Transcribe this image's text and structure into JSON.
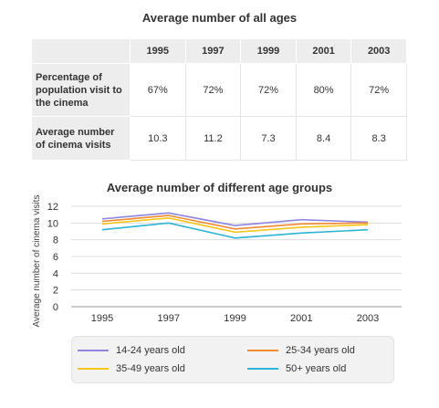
{
  "table": {
    "title": "Average number of all ages",
    "columns": [
      "1995",
      "1997",
      "1999",
      "2001",
      "2003"
    ],
    "rows": [
      {
        "label": "Percentage of population visit to the cinema",
        "values": [
          "67%",
          "72%",
          "72%",
          "80%",
          "72%"
        ]
      },
      {
        "label": "Average number of cinema visits",
        "values": [
          "10.3",
          "11.2",
          "7.3",
          "8.4",
          "8.3"
        ]
      }
    ]
  },
  "chart_data": {
    "type": "line",
    "title": "Average number of different age groups",
    "xlabel": "",
    "ylabel": "Average number of cinema visits",
    "categories": [
      "1995",
      "1997",
      "1999",
      "2001",
      "2003"
    ],
    "yticks": [
      0,
      2,
      4,
      6,
      8,
      10,
      12
    ],
    "ylim": [
      0,
      12
    ],
    "grid": "horizontal",
    "legend_position": "bottom",
    "series": [
      {
        "name": "14-24 years old",
        "color": "#8f86e0",
        "values": [
          10.5,
          11.2,
          9.7,
          10.4,
          10.1
        ]
      },
      {
        "name": "25-34 years old",
        "color": "#f28a30",
        "values": [
          10.2,
          10.9,
          9.3,
          9.9,
          10.0
        ]
      },
      {
        "name": "35-49 years old",
        "color": "#f5c518",
        "values": [
          9.9,
          10.6,
          8.9,
          9.5,
          9.8
        ]
      },
      {
        "name": "50+ years old",
        "color": "#2cb5d6",
        "values": [
          9.2,
          10.0,
          8.2,
          8.8,
          9.2
        ]
      }
    ]
  }
}
